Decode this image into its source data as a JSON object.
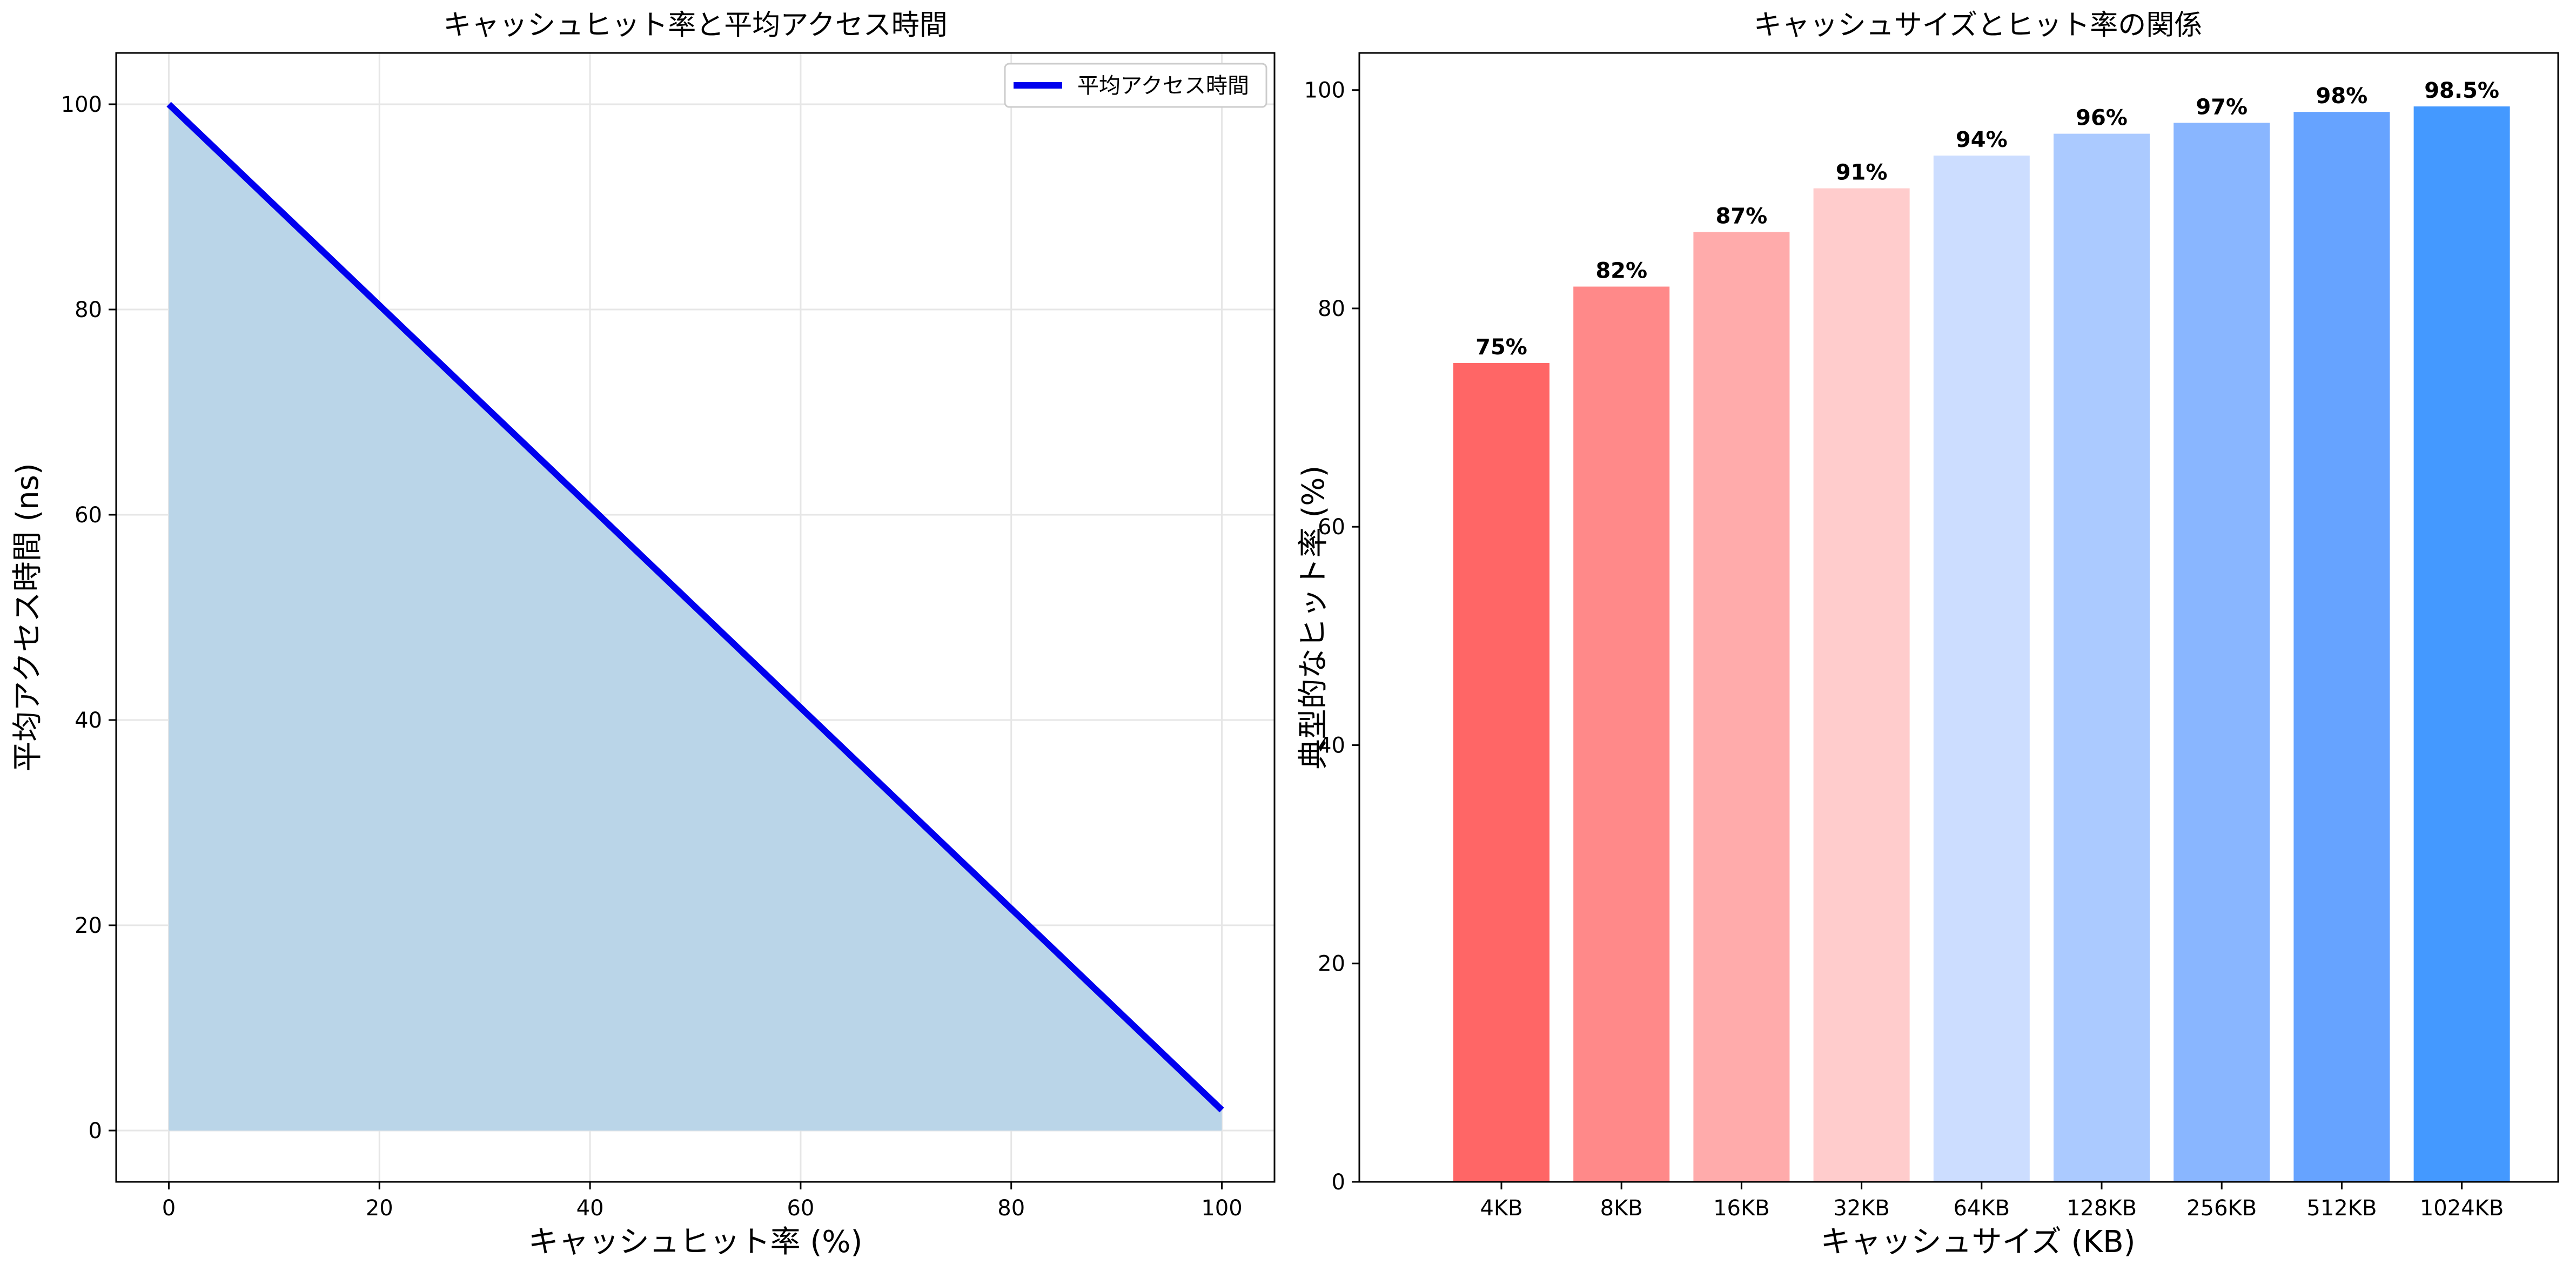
{
  "chart_data": [
    {
      "type": "area",
      "title": "キャッシュヒット率と平均アクセス時間",
      "xlabel": "キャッシュヒット率 (%)",
      "ylabel": "平均アクセス時間 (ns)",
      "xlim": [
        -5,
        105
      ],
      "ylim": [
        -5,
        105
      ],
      "xticks": [
        0,
        20,
        40,
        60,
        80,
        100
      ],
      "yticks": [
        0,
        20,
        40,
        60,
        80,
        100
      ],
      "grid": true,
      "legend_position": "top-right",
      "series": [
        {
          "name": "平均アクセス時間",
          "color": "#0000ee",
          "fill_color": "#bad5e8",
          "x": [
            0,
            100
          ],
          "y": [
            100,
            2
          ]
        }
      ]
    },
    {
      "type": "bar",
      "title": "キャッシュサイズとヒット率の関係",
      "xlabel": "キャッシュサイズ (KB)",
      "ylabel": "典型的なヒット率 (%)",
      "ylim": [
        0,
        103.4
      ],
      "yticks": [
        0,
        20,
        40,
        60,
        80,
        100
      ],
      "grid": false,
      "categories": [
        "4KB",
        "8KB",
        "16KB",
        "32KB",
        "64KB",
        "128KB",
        "256KB",
        "512KB",
        "1024KB"
      ],
      "values": [
        75,
        82,
        87,
        91,
        94,
        96,
        97,
        98,
        98.5
      ],
      "data_labels": [
        "75%",
        "82%",
        "87%",
        "91%",
        "94%",
        "96%",
        "97%",
        "98%",
        "98.5%"
      ],
      "colors": [
        "#ff6666",
        "#ff8989",
        "#ffabab",
        "#ffcccc",
        "#ccddff",
        "#abcaff",
        "#89b6ff",
        "#66a3ff",
        "#4499ff"
      ]
    }
  ]
}
